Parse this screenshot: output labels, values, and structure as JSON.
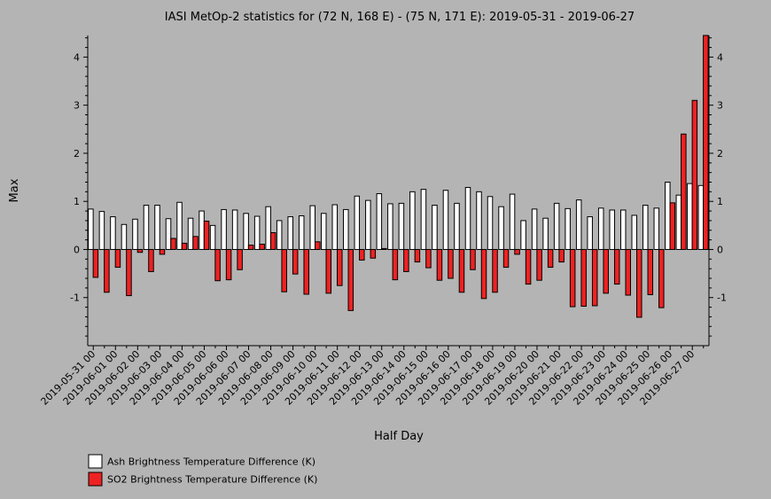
{
  "chart_data": {
    "type": "bar",
    "title": "IASI MetOp-2 statistics for (72 N, 168 E) - (75 N, 171 E): 2019-05-31 - 2019-06-27",
    "xlabel": "Half Day",
    "ylabel": "Max",
    "ylim": [
      -2,
      4.45
    ],
    "yticks": [
      -1,
      0,
      1,
      2,
      3,
      4
    ],
    "grid": false,
    "legend_position": "bottom-left",
    "x_tick_labels": [
      "2019-05-31 00",
      "2019-06-01 00",
      "2019-06-02 00",
      "2019-06-03 00",
      "2019-06-04 00",
      "2019-06-05 00",
      "2019-06-06 00",
      "2019-06-07 00",
      "2019-06-08 00",
      "2019-06-09 00",
      "2019-06-10 00",
      "2019-06-11 00",
      "2019-06-12 00",
      "2019-06-13 00",
      "2019-06-14 00",
      "2019-06-15 00",
      "2019-06-16 00",
      "2019-06-17 00",
      "2019-06-18 00",
      "2019-06-19 00",
      "2019-06-20 00",
      "2019-06-21 00",
      "2019-06-22 00",
      "2019-06-23 00",
      "2019-06-24 00",
      "2019-06-25 00",
      "2019-06-26 00",
      "2019-06-27 00"
    ],
    "categories": [
      "2019-05-31 00",
      "2019-05-31 12",
      "2019-06-01 00",
      "2019-06-01 12",
      "2019-06-02 00",
      "2019-06-02 12",
      "2019-06-03 00",
      "2019-06-03 12",
      "2019-06-04 00",
      "2019-06-04 12",
      "2019-06-05 00",
      "2019-06-05 12",
      "2019-06-06 00",
      "2019-06-06 12",
      "2019-06-07 00",
      "2019-06-07 12",
      "2019-06-08 00",
      "2019-06-08 12",
      "2019-06-09 00",
      "2019-06-09 12",
      "2019-06-10 00",
      "2019-06-10 12",
      "2019-06-11 00",
      "2019-06-11 12",
      "2019-06-12 00",
      "2019-06-12 12",
      "2019-06-13 00",
      "2019-06-13 12",
      "2019-06-14 00",
      "2019-06-14 12",
      "2019-06-15 00",
      "2019-06-15 12",
      "2019-06-16 00",
      "2019-06-16 12",
      "2019-06-17 00",
      "2019-06-17 12",
      "2019-06-18 00",
      "2019-06-18 12",
      "2019-06-19 00",
      "2019-06-19 12",
      "2019-06-20 00",
      "2019-06-20 12",
      "2019-06-21 00",
      "2019-06-21 12",
      "2019-06-22 00",
      "2019-06-22 12",
      "2019-06-23 00",
      "2019-06-23 12",
      "2019-06-24 00",
      "2019-06-24 12",
      "2019-06-25 00",
      "2019-06-25 12",
      "2019-06-26 00",
      "2019-06-26 12",
      "2019-06-27 00",
      "2019-06-27 12"
    ],
    "series": [
      {
        "name": "Ash Brightness Temperature Difference (K)",
        "color": "#ffffff",
        "values": [
          0.84,
          0.79,
          0.68,
          0.52,
          0.63,
          0.92,
          0.92,
          0.64,
          0.98,
          0.65,
          0.8,
          0.5,
          0.83,
          0.82,
          0.75,
          0.69,
          0.89,
          0.6,
          0.68,
          0.7,
          0.91,
          0.75,
          0.93,
          0.83,
          1.11,
          1.02,
          1.16,
          0.95,
          0.96,
          1.2,
          1.25,
          0.92,
          1.23,
          0.96,
          1.29,
          1.2,
          1.1,
          0.89,
          1.15,
          0.6,
          0.84,
          0.65,
          0.96,
          0.85,
          1.03,
          0.68,
          0.86,
          0.82,
          0.82,
          0.71,
          0.92,
          0.86,
          1.4,
          1.13,
          1.37,
          1.33
        ]
      },
      {
        "name": "SO2 Brightness Temperature Difference (K)",
        "color": "#ee2222",
        "values": [
          -0.58,
          -0.89,
          -0.37,
          -0.96,
          -0.06,
          -0.46,
          -0.1,
          0.23,
          0.13,
          0.27,
          0.59,
          -0.65,
          -0.63,
          -0.42,
          0.09,
          0.11,
          0.35,
          -0.88,
          -0.51,
          -0.93,
          0.16,
          -0.91,
          -0.75,
          -1.27,
          -0.22,
          -0.18,
          0.02,
          -0.63,
          -0.46,
          -0.26,
          -0.38,
          -0.64,
          -0.6,
          -0.89,
          -0.42,
          -1.02,
          -0.89,
          -0.37,
          -0.1,
          -0.72,
          -0.64,
          -0.37,
          -0.26,
          -1.19,
          -1.18,
          -1.17,
          -0.91,
          -0.72,
          -0.95,
          -1.41,
          -0.94,
          -1.21,
          0.97,
          2.4,
          3.1,
          4.45
        ]
      }
    ]
  }
}
